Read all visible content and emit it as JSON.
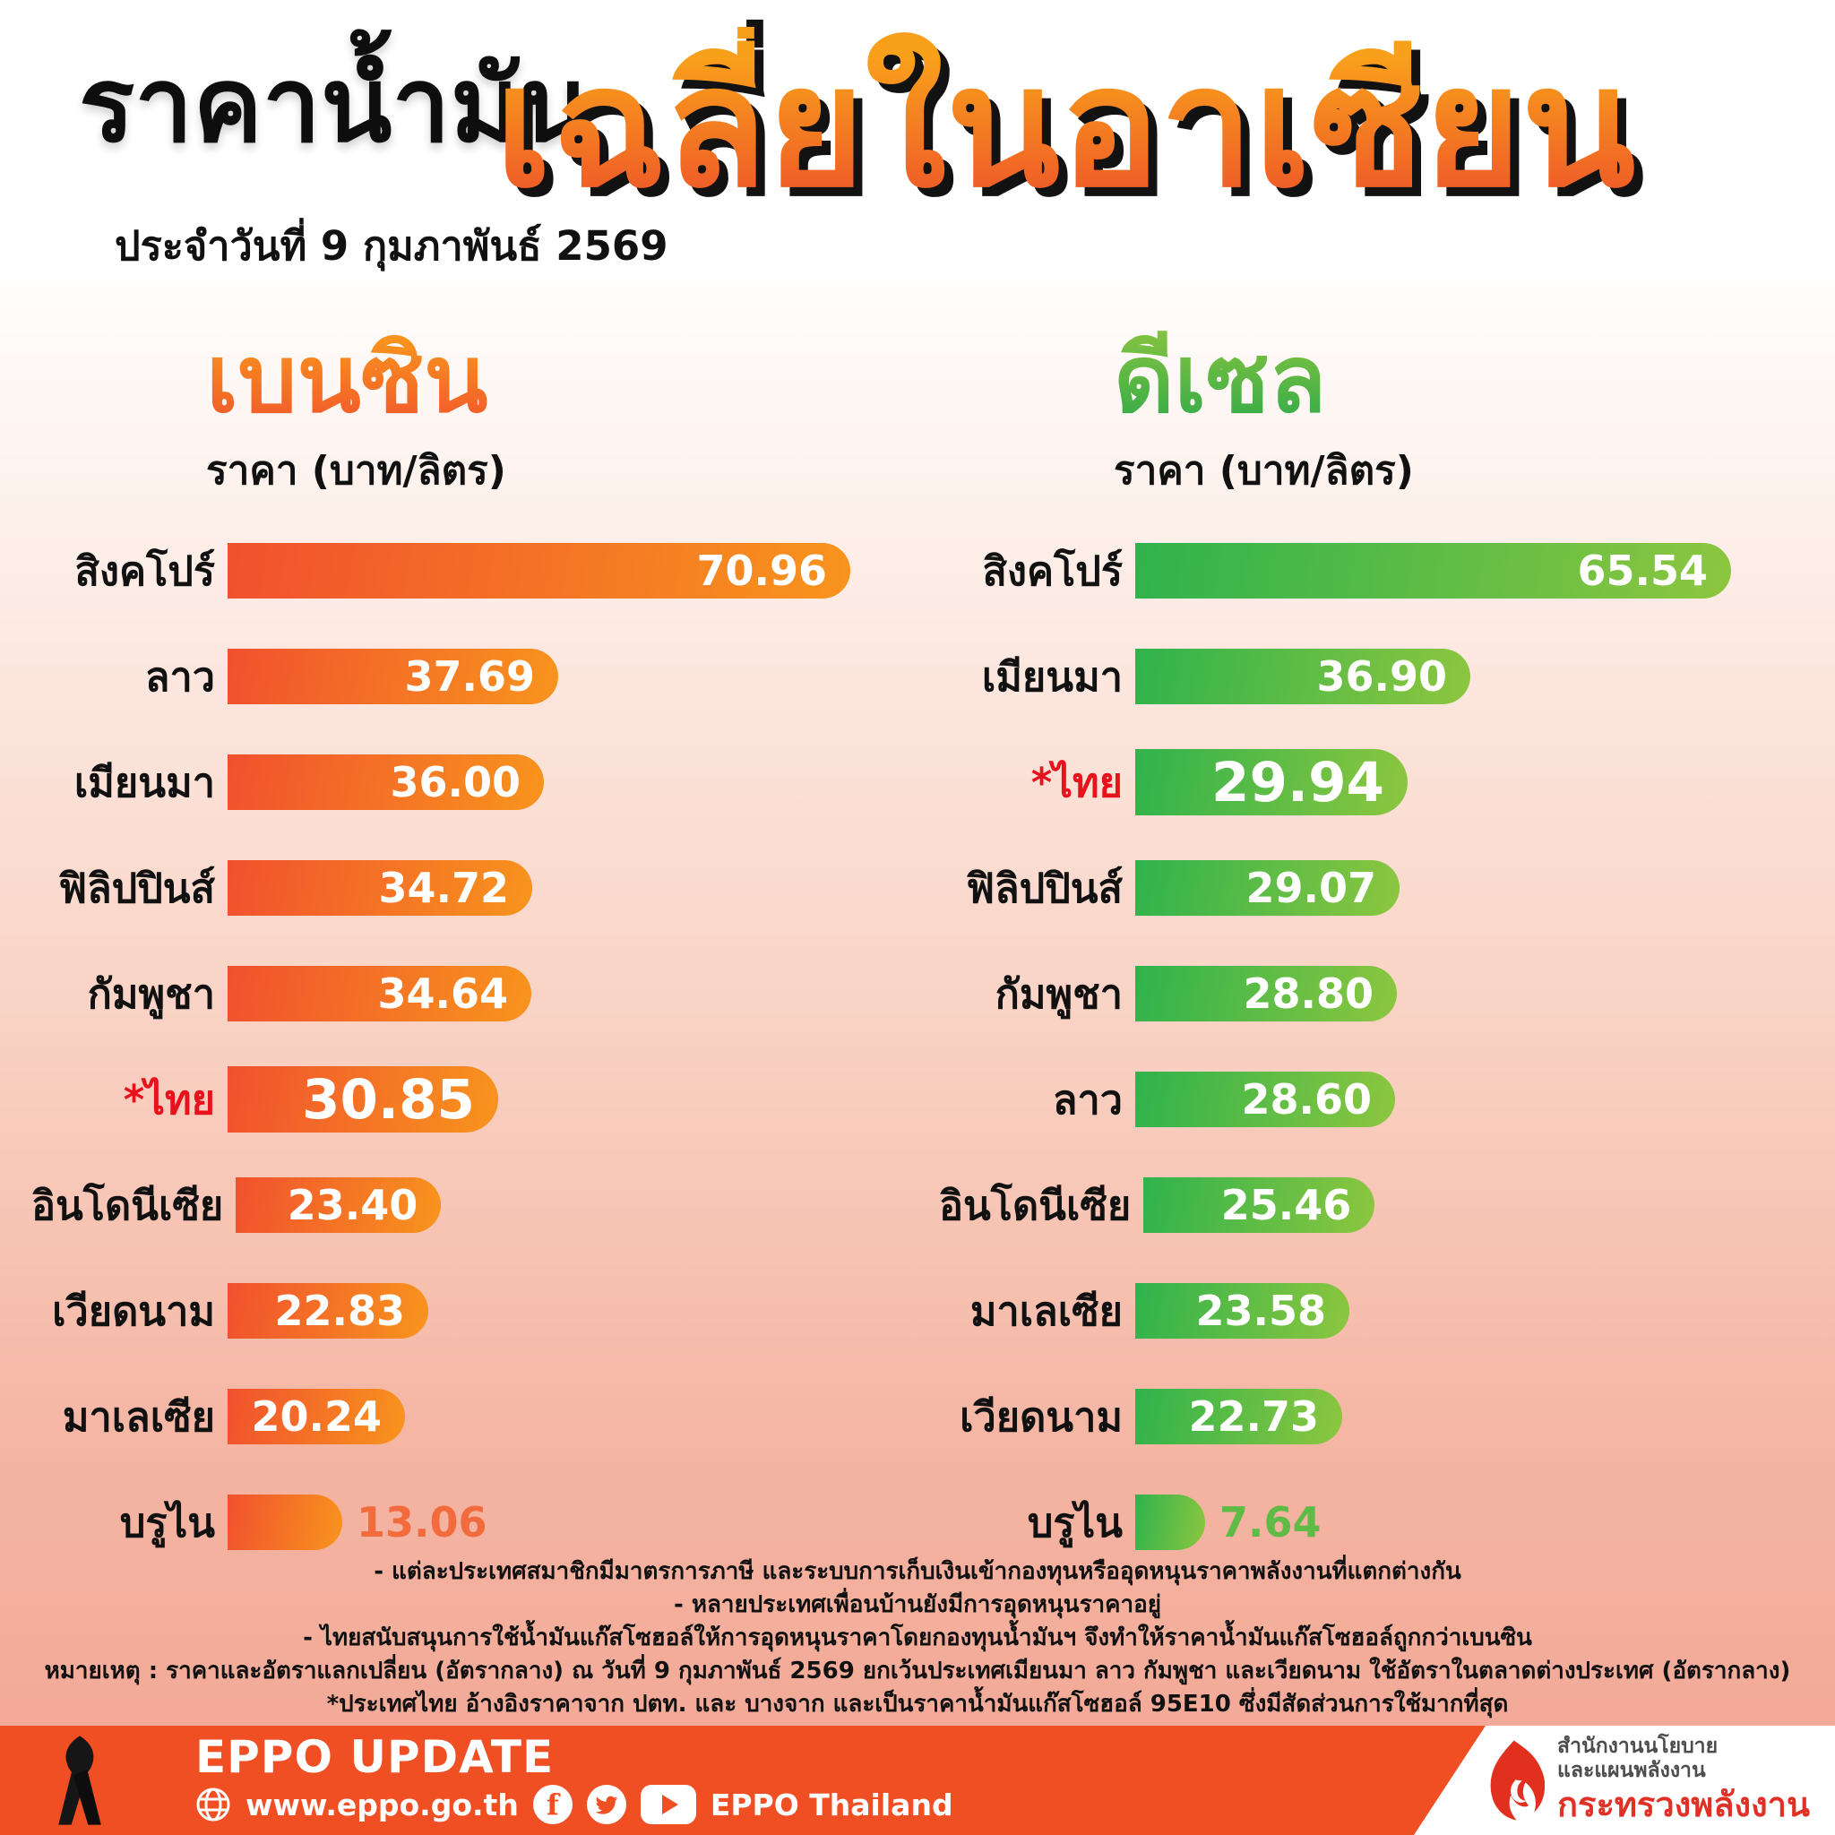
{
  "header": {
    "title_black": "ราคาน้ำมัน",
    "date_line": "ประจำวันที่ 9 กุมภาพันธ์ 2569",
    "title_orange": "เฉลี่ยในอาเซียน",
    "title_orange_gradient": [
      "#f9a01b",
      "#ef5a28"
    ]
  },
  "chart_data": [
    {
      "id": "benzin",
      "type": "bar",
      "orientation": "horizontal",
      "title": "เบนซิน",
      "unit_label": "ราคา (บาท/ลิตร)",
      "categories": [
        "สิงคโปร์",
        "ลาว",
        "เมียนมา",
        "ฟิลิปปินส์",
        "กัมพูชา",
        "*ไทย",
        "อินโดนีเซีย",
        "เวียดนาม",
        "มาเลเซีย",
        "บรูไน"
      ],
      "values": [
        70.96,
        37.69,
        36.0,
        34.72,
        34.64,
        30.85,
        23.4,
        22.83,
        20.24,
        13.06
      ],
      "value_labels": [
        "70.96",
        "37.69",
        "36.00",
        "34.72",
        "34.64",
        "30.85",
        "23.40",
        "22.83",
        "20.24",
        "13.06"
      ],
      "highlight_index": 5,
      "highlight_color": "#e8121c",
      "bar_gradient": [
        "#f1512e",
        "#f8941d"
      ],
      "header_gradient": [
        "#f9a01b",
        "#f1502c"
      ],
      "outside_value_color": "#f26b3d",
      "xlim": [
        0,
        71
      ],
      "grid": false,
      "legend": false
    },
    {
      "id": "diesel",
      "type": "bar",
      "orientation": "horizontal",
      "title": "ดีเซล",
      "unit_label": "ราคา (บาท/ลิตร)",
      "categories": [
        "สิงคโปร์",
        "เมียนมา",
        "*ไทย",
        "ฟิลิปปินส์",
        "กัมพูชา",
        "ลาว",
        "อินโดนีเซีย",
        "มาเลเซีย",
        "เวียดนาม",
        "บรูไน"
      ],
      "values": [
        65.54,
        36.9,
        29.94,
        29.07,
        28.8,
        28.6,
        25.46,
        23.58,
        22.73,
        7.64
      ],
      "value_labels": [
        "65.54",
        "36.90",
        "29.94",
        "29.07",
        "28.80",
        "28.60",
        "25.46",
        "23.58",
        "22.73",
        "7.64"
      ],
      "highlight_index": 2,
      "highlight_color": "#e8121c",
      "bar_gradient": [
        "#2fb34c",
        "#8dc63f"
      ],
      "header_gradient": [
        "#8dc63f",
        "#2aa84a"
      ],
      "outside_value_color": "#5dbb46",
      "xlim": [
        0,
        66
      ],
      "grid": false,
      "legend": false
    }
  ],
  "footnotes": [
    "- แต่ละประเทศสมาชิกมีมาตรการภาษี และระบบการเก็บเงินเข้ากองทุนหรืออุดหนุนราคาพลังงานที่แตกต่างกัน",
    "- หลายประเทศเพื่อนบ้านยังมีการอุดหนุนราคาอยู่",
    "- ไทยสนับสนุนการใช้น้ำมันแก๊สโซฮอล์ให้การอุดหนุนราคาโดยกองทุนน้ำมันฯ จึงทำให้ราคาน้ำมันแก๊สโซฮอล์ถูกกว่าเบนซิน",
    "หมายเหตุ : ราคาและอัตราแลกเปลี่ยน (อัตรากลาง) ณ วันที่ 9 กุมภาพันธ์ 2569 ยกเว้นประเทศเมียนมา ลาว กัมพูชา และเวียดนาม ใช้อัตราในตลาดต่างประเทศ (อัตรากลาง)",
    "*ประเทศไทย อ้างอิงราคาจาก ปตท. และ บางจาก และเป็นราคาน้ำมันแก๊สโซฮอล์ 95E10 ซึ่งมีสัดส่วนการใช้มากที่สุด"
  ],
  "footer": {
    "brand": "EPPO UPDATE",
    "website": "www.eppo.go.th",
    "social_caption": "EPPO Thailand",
    "bar_color": "#f04e23",
    "agency_line1": "สำนักงานนโยบาย",
    "agency_line2": "และแผนพลังงาน",
    "agency_line3": "กระทรวงพลังงาน"
  }
}
